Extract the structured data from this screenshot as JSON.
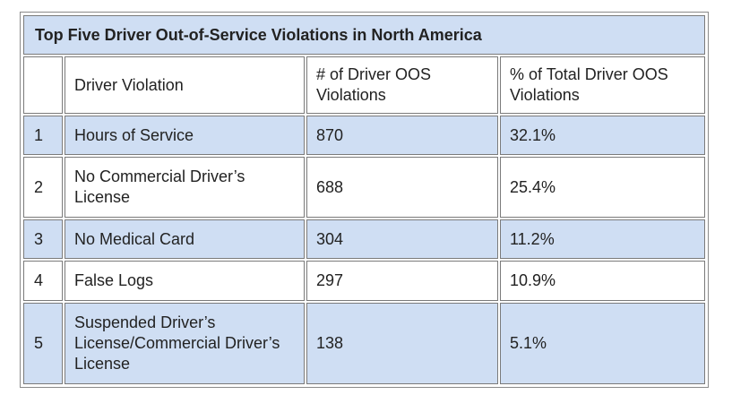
{
  "table": {
    "title": "Top Five Driver Out-of-Service Violations in North America",
    "headers": [
      "",
      "Driver Violation",
      "# of Driver OOS Violations",
      "% of Total Driver OOS Violations"
    ],
    "rows": [
      {
        "rank": "1",
        "violation": "Hours of Service",
        "count": "870",
        "percent": "32.1%"
      },
      {
        "rank": "2",
        "violation": "No Commercial Driver’s License",
        "count": "688",
        "percent": "25.4%"
      },
      {
        "rank": "3",
        "violation": "No Medical Card",
        "count": "304",
        "percent": "11.2%"
      },
      {
        "rank": "4",
        "violation": "False Logs",
        "count": "297",
        "percent": "10.9%"
      },
      {
        "rank": "5",
        "violation": "Suspended Driver’s License/Commercial Driver’s License",
        "count": "138",
        "percent": "5.1%"
      }
    ]
  },
  "colors": {
    "row_highlight": "#cfdef3",
    "border": "#7a7a7a"
  }
}
